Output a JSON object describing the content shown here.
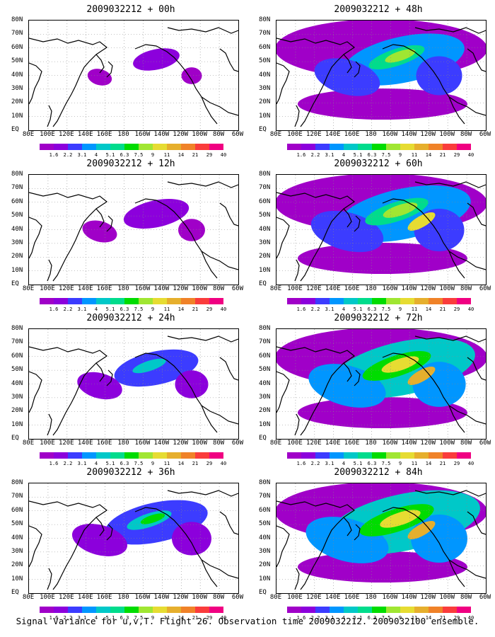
{
  "caption": "Signal Variance for u,v,T. Flight 26. Observation time 2009032212. 2009032100 ensemble.",
  "panels": [
    {
      "title": "2009032212 + 00h",
      "intensity": 0.15
    },
    {
      "title": "2009032212 + 48h",
      "intensity": 0.75
    },
    {
      "title": "2009032212 + 12h",
      "intensity": 0.3
    },
    {
      "title": "2009032212 + 60h",
      "intensity": 0.85
    },
    {
      "title": "2009032212 + 24h",
      "intensity": 0.45
    },
    {
      "title": "2009032212 + 72h",
      "intensity": 0.92
    },
    {
      "title": "2009032212 + 36h",
      "intensity": 0.6
    },
    {
      "title": "2009032212 + 84h",
      "intensity": 1.0
    }
  ],
  "lat_labels": [
    "80N",
    "70N",
    "60N",
    "50N",
    "40N",
    "30N",
    "20N",
    "10N",
    "EQ"
  ],
  "lon_labels": [
    "80E",
    "100E",
    "120E",
    "140E",
    "160E",
    "180",
    "160W",
    "140W",
    "120W",
    "100W",
    "80W",
    "60W"
  ],
  "colorbar": {
    "levels": [
      "1.6",
      "2.2",
      "3.1",
      "4",
      "5.1",
      "6.3",
      "7.5",
      "9",
      "11",
      "14",
      "21",
      "29",
      "40"
    ],
    "colors": [
      "#a000c8",
      "#8c00dc",
      "#3c3cff",
      "#0096ff",
      "#00c8c8",
      "#00dc8c",
      "#00dc00",
      "#a0e632",
      "#e6dc32",
      "#e6af2d",
      "#f08228",
      "#fa3c3c",
      "#f00082"
    ]
  }
}
